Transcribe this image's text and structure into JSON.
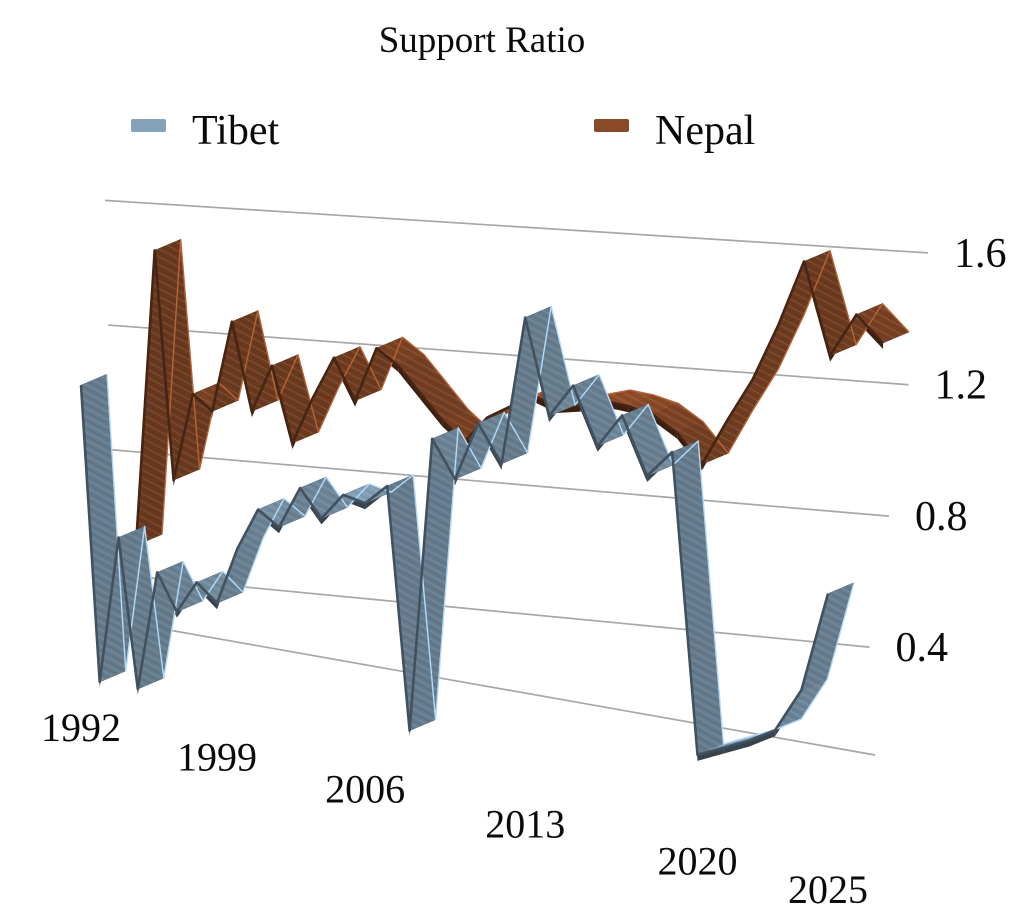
{
  "page": {
    "background": "#ffffff"
  },
  "chart_data": {
    "type": "line",
    "style": "3d-ribbon",
    "title": "Support Ratio",
    "xlabel": "",
    "ylabel": "",
    "grid": true,
    "legend_position": "top",
    "gridline_color": "#a7a7a7",
    "label_color": "#0a0a0a",
    "ylim": [
      0,
      1.8
    ],
    "x": [
      1992,
      1993,
      1994,
      1995,
      1996,
      1997,
      1998,
      1999,
      2000,
      2001,
      2002,
      2003,
      2004,
      2005,
      2006,
      2007,
      2008,
      2009,
      2010,
      2011,
      2012,
      2013,
      2014,
      2015,
      2016,
      2017,
      2018,
      2019,
      2020,
      2021,
      2022,
      2023,
      2024,
      2025
    ],
    "x_tick_labels": [
      "1992",
      "1999",
      "2006",
      "2013",
      "2020",
      "2025"
    ],
    "y_tick_labels": [
      "1.6",
      "1.2",
      "0.8",
      "0.4"
    ],
    "y_tick_values": [
      1.6,
      1.2,
      0.8,
      0.4
    ],
    "gridline_values": [
      1.6,
      1.2,
      0.8,
      0.4
    ],
    "series": [
      {
        "name": "Tibet",
        "color": "#84A2B9",
        "values": [
          1.0,
          0.05,
          0.52,
          0.04,
          0.42,
          0.3,
          0.4,
          0.34,
          0.52,
          0.65,
          0.6,
          0.73,
          0.64,
          0.72,
          0.7,
          0.76,
          0.0,
          0.92,
          0.8,
          0.98,
          0.86,
          1.32,
          1.02,
          1.12,
          0.94,
          1.04,
          0.86,
          0.94,
          0.02,
          0.05,
          0.08,
          0.12,
          0.25,
          0.55
        ]
      },
      {
        "name": "Nepal",
        "color": "#8A4A27",
        "values": [
          0.5,
          1.45,
          0.72,
          1.0,
          0.95,
          1.24,
          0.96,
          1.11,
          0.87,
          1.02,
          1.15,
          1.02,
          1.19,
          1.14,
          1.06,
          0.98,
          0.92,
          1.0,
          1.04,
          1.08,
          1.05,
          1.06,
          1.08,
          1.07,
          1.05,
          1.0,
          0.91,
          1.05,
          1.18,
          1.35,
          1.55,
          1.27,
          1.4,
          1.32
        ]
      }
    ]
  }
}
